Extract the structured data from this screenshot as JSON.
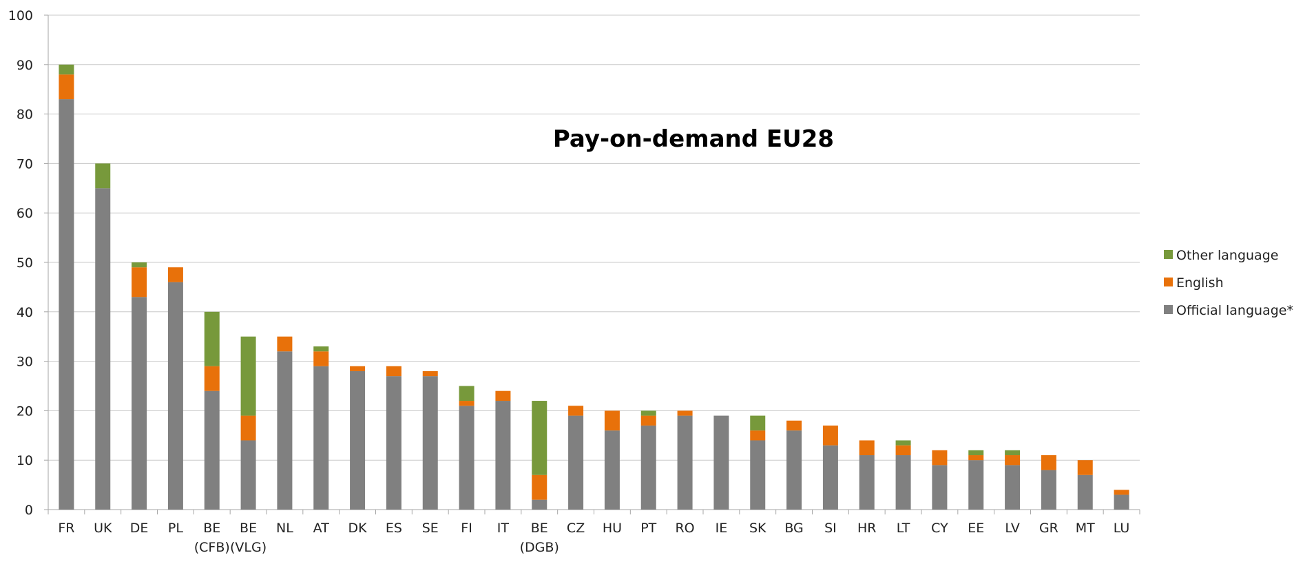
{
  "chart_data": {
    "type": "bar",
    "stacked": true,
    "title": "Pay-on-demand EU28",
    "xlabel": "",
    "ylabel": "",
    "ylim": [
      0,
      100
    ],
    "yticks": [
      0,
      10,
      20,
      30,
      40,
      50,
      60,
      70,
      80,
      90,
      100
    ],
    "grid": true,
    "legend_position": "right",
    "categories": [
      [
        "FR"
      ],
      [
        "UK"
      ],
      [
        "DE"
      ],
      [
        "PL"
      ],
      [
        "BE",
        "(CFB)"
      ],
      [
        "BE",
        "(VLG)"
      ],
      [
        "NL"
      ],
      [
        "AT"
      ],
      [
        "DK"
      ],
      [
        "ES"
      ],
      [
        "SE"
      ],
      [
        "FI"
      ],
      [
        "IT"
      ],
      [
        "BE",
        "(DGB)"
      ],
      [
        "CZ"
      ],
      [
        "HU"
      ],
      [
        "PT"
      ],
      [
        "RO"
      ],
      [
        "IE"
      ],
      [
        "SK"
      ],
      [
        "BG"
      ],
      [
        "SI"
      ],
      [
        "HR"
      ],
      [
        "LT"
      ],
      [
        "CY"
      ],
      [
        "EE"
      ],
      [
        "LV"
      ],
      [
        "GR"
      ],
      [
        "MT"
      ],
      [
        "LU"
      ]
    ],
    "series": [
      {
        "name": "Official language*",
        "color": "#808080",
        "values": [
          83,
          65,
          43,
          46,
          24,
          14,
          32,
          29,
          28,
          27,
          27,
          21,
          22,
          2,
          19,
          16,
          17,
          19,
          19,
          14,
          16,
          13,
          11,
          11,
          9,
          10,
          9,
          8,
          7,
          3
        ]
      },
      {
        "name": "English",
        "color": "#e8710a",
        "values": [
          5,
          0,
          6,
          3,
          5,
          5,
          3,
          3,
          1,
          2,
          1,
          1,
          2,
          5,
          2,
          4,
          2,
          1,
          0,
          2,
          2,
          4,
          3,
          2,
          3,
          1,
          2,
          3,
          3,
          1
        ]
      },
      {
        "name": "Other language",
        "color": "#77993b",
        "values": [
          2,
          5,
          1,
          0,
          11,
          16,
          0,
          1,
          0,
          0,
          0,
          3,
          0,
          15,
          0,
          0,
          1,
          0,
          0,
          3,
          0,
          0,
          0,
          1,
          0,
          1,
          1,
          0,
          0,
          0
        ]
      }
    ],
    "legend_order": [
      "Other language",
      "English",
      "Official language*"
    ]
  }
}
